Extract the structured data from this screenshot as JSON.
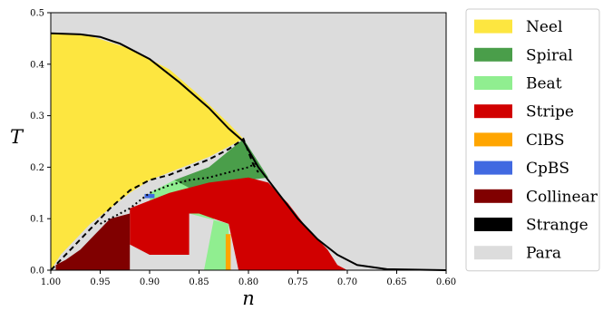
{
  "chart_data": {
    "type": "heatmap",
    "title": "",
    "xlabel": "n",
    "ylabel": "T",
    "xlim": [
      1.0,
      0.6
    ],
    "ylim": [
      0.0,
      0.5
    ],
    "x_ticks": [
      "1.00",
      "0.95",
      "0.90",
      "0.85",
      "0.80",
      "0.75",
      "0.70",
      "0.65",
      "0.60"
    ],
    "y_ticks": [
      "0.0",
      "0.1",
      "0.2",
      "0.3",
      "0.4",
      "0.5"
    ],
    "background_phase": "Para",
    "legend_position": "outside-right",
    "phases": [
      {
        "name": "Neel",
        "color": "#fde640"
      },
      {
        "name": "Spiral",
        "color": "#4a9e4a"
      },
      {
        "name": "Beat",
        "color": "#90ee90"
      },
      {
        "name": "Stripe",
        "color": "#d10000"
      },
      {
        "name": "ClBS",
        "color": "#ffa500"
      },
      {
        "name": "CpBS",
        "color": "#4169e1"
      },
      {
        "name": "Collinear",
        "color": "#800000"
      },
      {
        "name": "Strange",
        "color": "#000000"
      },
      {
        "name": "Para",
        "color": "#dcdcdc"
      }
    ],
    "regions": [
      {
        "phase": "Neel",
        "points": [
          [
            1.0,
            0.0
          ],
          [
            1.0,
            0.46
          ],
          [
            0.96,
            0.455
          ],
          [
            0.92,
            0.43
          ],
          [
            0.88,
            0.39
          ],
          [
            0.85,
            0.34
          ],
          [
            0.82,
            0.285
          ],
          [
            0.805,
            0.255
          ],
          [
            0.82,
            0.24
          ],
          [
            0.84,
            0.22
          ],
          [
            0.86,
            0.205
          ],
          [
            0.88,
            0.19
          ],
          [
            0.9,
            0.175
          ],
          [
            0.92,
            0.15
          ],
          [
            0.94,
            0.12
          ],
          [
            0.96,
            0.09
          ],
          [
            0.98,
            0.05
          ],
          [
            0.99,
            0.03
          ],
          [
            1.0,
            0.0
          ]
        ]
      },
      {
        "phase": "Spiral",
        "points": [
          [
            0.875,
            0.175
          ],
          [
            0.84,
            0.2
          ],
          [
            0.805,
            0.255
          ],
          [
            0.79,
            0.21
          ],
          [
            0.78,
            0.18
          ],
          [
            0.8,
            0.175
          ],
          [
            0.83,
            0.165
          ],
          [
            0.86,
            0.16
          ],
          [
            0.88,
            0.16
          ]
        ]
      },
      {
        "phase": "Beat",
        "points": [
          [
            0.9,
            0.15
          ],
          [
            0.875,
            0.175
          ],
          [
            0.86,
            0.16
          ],
          [
            0.83,
            0.165
          ],
          [
            0.8,
            0.175
          ],
          [
            0.79,
            0.16
          ],
          [
            0.8,
            0.14
          ],
          [
            0.82,
            0.12
          ],
          [
            0.835,
            0.1
          ],
          [
            0.845,
            0.0
          ],
          [
            0.82,
            0.0
          ],
          [
            0.82,
            0.09
          ],
          [
            0.86,
            0.11
          ],
          [
            0.9,
            0.13
          ]
        ]
      },
      {
        "phase": "Stripe",
        "points": [
          [
            0.92,
            0.12
          ],
          [
            0.88,
            0.15
          ],
          [
            0.84,
            0.17
          ],
          [
            0.8,
            0.18
          ],
          [
            0.78,
            0.17
          ],
          [
            0.76,
            0.13
          ],
          [
            0.74,
            0.08
          ],
          [
            0.72,
            0.04
          ],
          [
            0.71,
            0.01
          ],
          [
            0.7,
            0.0
          ],
          [
            0.8,
            0.0
          ],
          [
            0.81,
            0.0
          ],
          [
            0.82,
            0.09
          ],
          [
            0.835,
            0.1
          ],
          [
            0.85,
            0.11
          ],
          [
            0.86,
            0.11
          ],
          [
            0.86,
            0.03
          ],
          [
            0.9,
            0.03
          ],
          [
            0.92,
            0.05
          ]
        ]
      },
      {
        "phase": "Collinear",
        "points": [
          [
            0.995,
            0.0
          ],
          [
            0.995,
            0.01
          ],
          [
            0.985,
            0.02
          ],
          [
            0.97,
            0.04
          ],
          [
            0.96,
            0.06
          ],
          [
            0.95,
            0.08
          ],
          [
            0.94,
            0.1
          ],
          [
            0.92,
            0.11
          ],
          [
            0.92,
            0.0
          ]
        ]
      },
      {
        "phase": "ClBS",
        "points": [
          [
            0.823,
            0.0
          ],
          [
            0.823,
            0.07
          ],
          [
            0.818,
            0.07
          ],
          [
            0.818,
            0.0
          ]
        ]
      },
      {
        "phase": "CpBS",
        "points": [
          [
            0.905,
            0.14
          ],
          [
            0.905,
            0.148
          ],
          [
            0.895,
            0.148
          ],
          [
            0.895,
            0.14
          ]
        ]
      }
    ],
    "lines": [
      {
        "name": "",
        "style": "solid",
        "points": [
          [
            1.0,
            0.46
          ],
          [
            0.97,
            0.458
          ],
          [
            0.95,
            0.453
          ],
          [
            0.93,
            0.44
          ],
          [
            0.9,
            0.41
          ],
          [
            0.87,
            0.365
          ],
          [
            0.84,
            0.315
          ],
          [
            0.82,
            0.275
          ],
          [
            0.805,
            0.25
          ],
          [
            0.79,
            0.2
          ],
          [
            0.77,
            0.15
          ],
          [
            0.75,
            0.1
          ],
          [
            0.73,
            0.06
          ],
          [
            0.71,
            0.03
          ],
          [
            0.69,
            0.01
          ],
          [
            0.66,
            0.002
          ],
          [
            0.6,
            0.0
          ]
        ]
      },
      {
        "name": "",
        "style": "dashed",
        "points": [
          [
            1.0,
            0.0
          ],
          [
            0.98,
            0.04
          ],
          [
            0.96,
            0.08
          ],
          [
            0.94,
            0.12
          ],
          [
            0.92,
            0.155
          ],
          [
            0.9,
            0.175
          ],
          [
            0.88,
            0.185
          ],
          [
            0.86,
            0.2
          ],
          [
            0.84,
            0.215
          ],
          [
            0.82,
            0.235
          ],
          [
            0.805,
            0.255
          ],
          [
            0.795,
            0.205
          ],
          [
            0.79,
            0.19
          ]
        ]
      },
      {
        "name": "",
        "style": "dotted",
        "points": [
          [
            0.95,
            0.09
          ],
          [
            0.94,
            0.1
          ],
          [
            0.93,
            0.11
          ],
          [
            0.92,
            0.12
          ],
          [
            0.91,
            0.135
          ],
          [
            0.9,
            0.15
          ],
          [
            0.88,
            0.165
          ],
          [
            0.86,
            0.175
          ],
          [
            0.84,
            0.18
          ],
          [
            0.82,
            0.19
          ],
          [
            0.8,
            0.2
          ],
          [
            0.79,
            0.21
          ]
        ]
      }
    ]
  }
}
